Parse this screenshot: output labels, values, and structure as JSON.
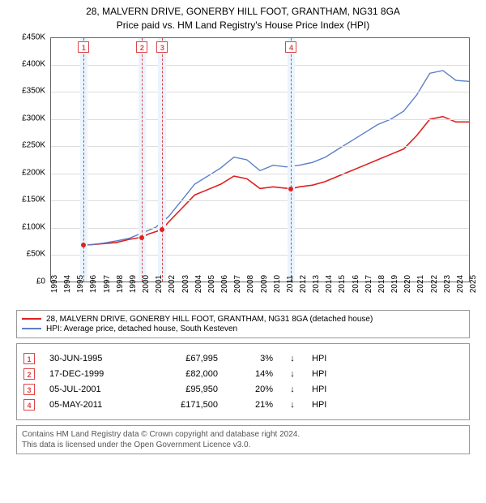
{
  "title": {
    "line1": "28, MALVERN DRIVE, GONERBY HILL FOOT, GRANTHAM, NG31 8GA",
    "line2": "Price paid vs. HM Land Registry's House Price Index (HPI)",
    "fontsize": 12,
    "color": "#000000"
  },
  "chart": {
    "type": "line",
    "background_color": "#ffffff",
    "grid_color": "#dddddd",
    "axis_color": "#666666",
    "xlim": [
      1993,
      2025
    ],
    "ylim": [
      0,
      450000
    ],
    "ytick_step": 50000,
    "yticks": [
      {
        "v": 0,
        "label": "£0"
      },
      {
        "v": 50000,
        "label": "£50K"
      },
      {
        "v": 100000,
        "label": "£100K"
      },
      {
        "v": 150000,
        "label": "£150K"
      },
      {
        "v": 200000,
        "label": "£200K"
      },
      {
        "v": 250000,
        "label": "£250K"
      },
      {
        "v": 300000,
        "label": "£300K"
      },
      {
        "v": 350000,
        "label": "£350K"
      },
      {
        "v": 400000,
        "label": "£400K"
      },
      {
        "v": 450000,
        "label": "£450K"
      }
    ],
    "xticks": [
      1993,
      1994,
      1995,
      1996,
      1997,
      1998,
      1999,
      2000,
      2001,
      2002,
      2003,
      2004,
      2005,
      2006,
      2007,
      2008,
      2009,
      2010,
      2011,
      2012,
      2013,
      2014,
      2015,
      2016,
      2017,
      2018,
      2019,
      2020,
      2021,
      2022,
      2023,
      2024,
      2025
    ],
    "label_fontsize": 10,
    "event_band_color": "#eaf4ff",
    "event_line_color": "#dd4444",
    "event_box_border": "#dd4444",
    "event_box_text": "#dd4444",
    "events": [
      {
        "n": "1",
        "x": 1995.5,
        "band": [
          1995.2,
          1995.8
        ]
      },
      {
        "n": "2",
        "x": 1999.96,
        "band": [
          1999.7,
          2000.25
        ]
      },
      {
        "n": "3",
        "x": 2001.5,
        "band": [
          2001.2,
          2001.8
        ]
      },
      {
        "n": "4",
        "x": 2011.35,
        "band": [
          2011.05,
          2011.65
        ]
      }
    ],
    "series": [
      {
        "name": "property",
        "color": "#e02020",
        "line_width": 1.6,
        "points": [
          [
            1995.5,
            67995
          ],
          [
            1996,
            68000
          ],
          [
            1997,
            70000
          ],
          [
            1998,
            72000
          ],
          [
            1999,
            78000
          ],
          [
            1999.96,
            82000
          ],
          [
            2000.5,
            88000
          ],
          [
            2001.5,
            95950
          ],
          [
            2002,
            110000
          ],
          [
            2003,
            135000
          ],
          [
            2004,
            160000
          ],
          [
            2005,
            170000
          ],
          [
            2006,
            180000
          ],
          [
            2007,
            195000
          ],
          [
            2008,
            190000
          ],
          [
            2009,
            172000
          ],
          [
            2010,
            175000
          ],
          [
            2011.35,
            171500
          ],
          [
            2012,
            175000
          ],
          [
            2013,
            178000
          ],
          [
            2014,
            185000
          ],
          [
            2015,
            195000
          ],
          [
            2016,
            205000
          ],
          [
            2017,
            215000
          ],
          [
            2018,
            225000
          ],
          [
            2019,
            235000
          ],
          [
            2020,
            245000
          ],
          [
            2021,
            270000
          ],
          [
            2022,
            300000
          ],
          [
            2023,
            305000
          ],
          [
            2024,
            295000
          ],
          [
            2025,
            295000
          ]
        ]
      },
      {
        "name": "hpi",
        "color": "#5b7fc7",
        "line_width": 1.4,
        "points": [
          [
            1995.5,
            67000
          ],
          [
            1996,
            68000
          ],
          [
            1997,
            71000
          ],
          [
            1998,
            75000
          ],
          [
            1999,
            80000
          ],
          [
            2000,
            90000
          ],
          [
            2001,
            100000
          ],
          [
            2002,
            120000
          ],
          [
            2003,
            150000
          ],
          [
            2004,
            180000
          ],
          [
            2005,
            195000
          ],
          [
            2006,
            210000
          ],
          [
            2007,
            230000
          ],
          [
            2008,
            225000
          ],
          [
            2009,
            205000
          ],
          [
            2010,
            215000
          ],
          [
            2011,
            212000
          ],
          [
            2012,
            215000
          ],
          [
            2013,
            220000
          ],
          [
            2014,
            230000
          ],
          [
            2015,
            245000
          ],
          [
            2016,
            260000
          ],
          [
            2017,
            275000
          ],
          [
            2018,
            290000
          ],
          [
            2019,
            300000
          ],
          [
            2020,
            315000
          ],
          [
            2021,
            345000
          ],
          [
            2022,
            385000
          ],
          [
            2023,
            390000
          ],
          [
            2024,
            372000
          ],
          [
            2025,
            370000
          ]
        ]
      }
    ],
    "sale_dots": {
      "color": "#e02020",
      "radius": 3,
      "points": [
        [
          1995.5,
          67995
        ],
        [
          1999.96,
          82000
        ],
        [
          2001.5,
          95950
        ],
        [
          2011.35,
          171500
        ]
      ]
    }
  },
  "legend": {
    "items": [
      {
        "color": "#e02020",
        "label": "28, MALVERN DRIVE, GONERBY HILL FOOT, GRANTHAM, NG31 8GA (detached house)"
      },
      {
        "color": "#5b7fc7",
        "label": "HPI: Average price, detached house, South Kesteven"
      }
    ]
  },
  "events_table": {
    "rows": [
      {
        "n": "1",
        "date": "30-JUN-1995",
        "price": "£67,995",
        "pct": "3%",
        "arrow": "↓",
        "hpi": "HPI"
      },
      {
        "n": "2",
        "date": "17-DEC-1999",
        "price": "£82,000",
        "pct": "14%",
        "arrow": "↓",
        "hpi": "HPI"
      },
      {
        "n": "3",
        "date": "05-JUL-2001",
        "price": "£95,950",
        "pct": "20%",
        "arrow": "↓",
        "hpi": "HPI"
      },
      {
        "n": "4",
        "date": "05-MAY-2011",
        "price": "£171,500",
        "pct": "21%",
        "arrow": "↓",
        "hpi": "HPI"
      }
    ]
  },
  "footer": {
    "line1": "Contains HM Land Registry data © Crown copyright and database right 2024.",
    "line2": "This data is licensed under the Open Government Licence v3.0."
  }
}
